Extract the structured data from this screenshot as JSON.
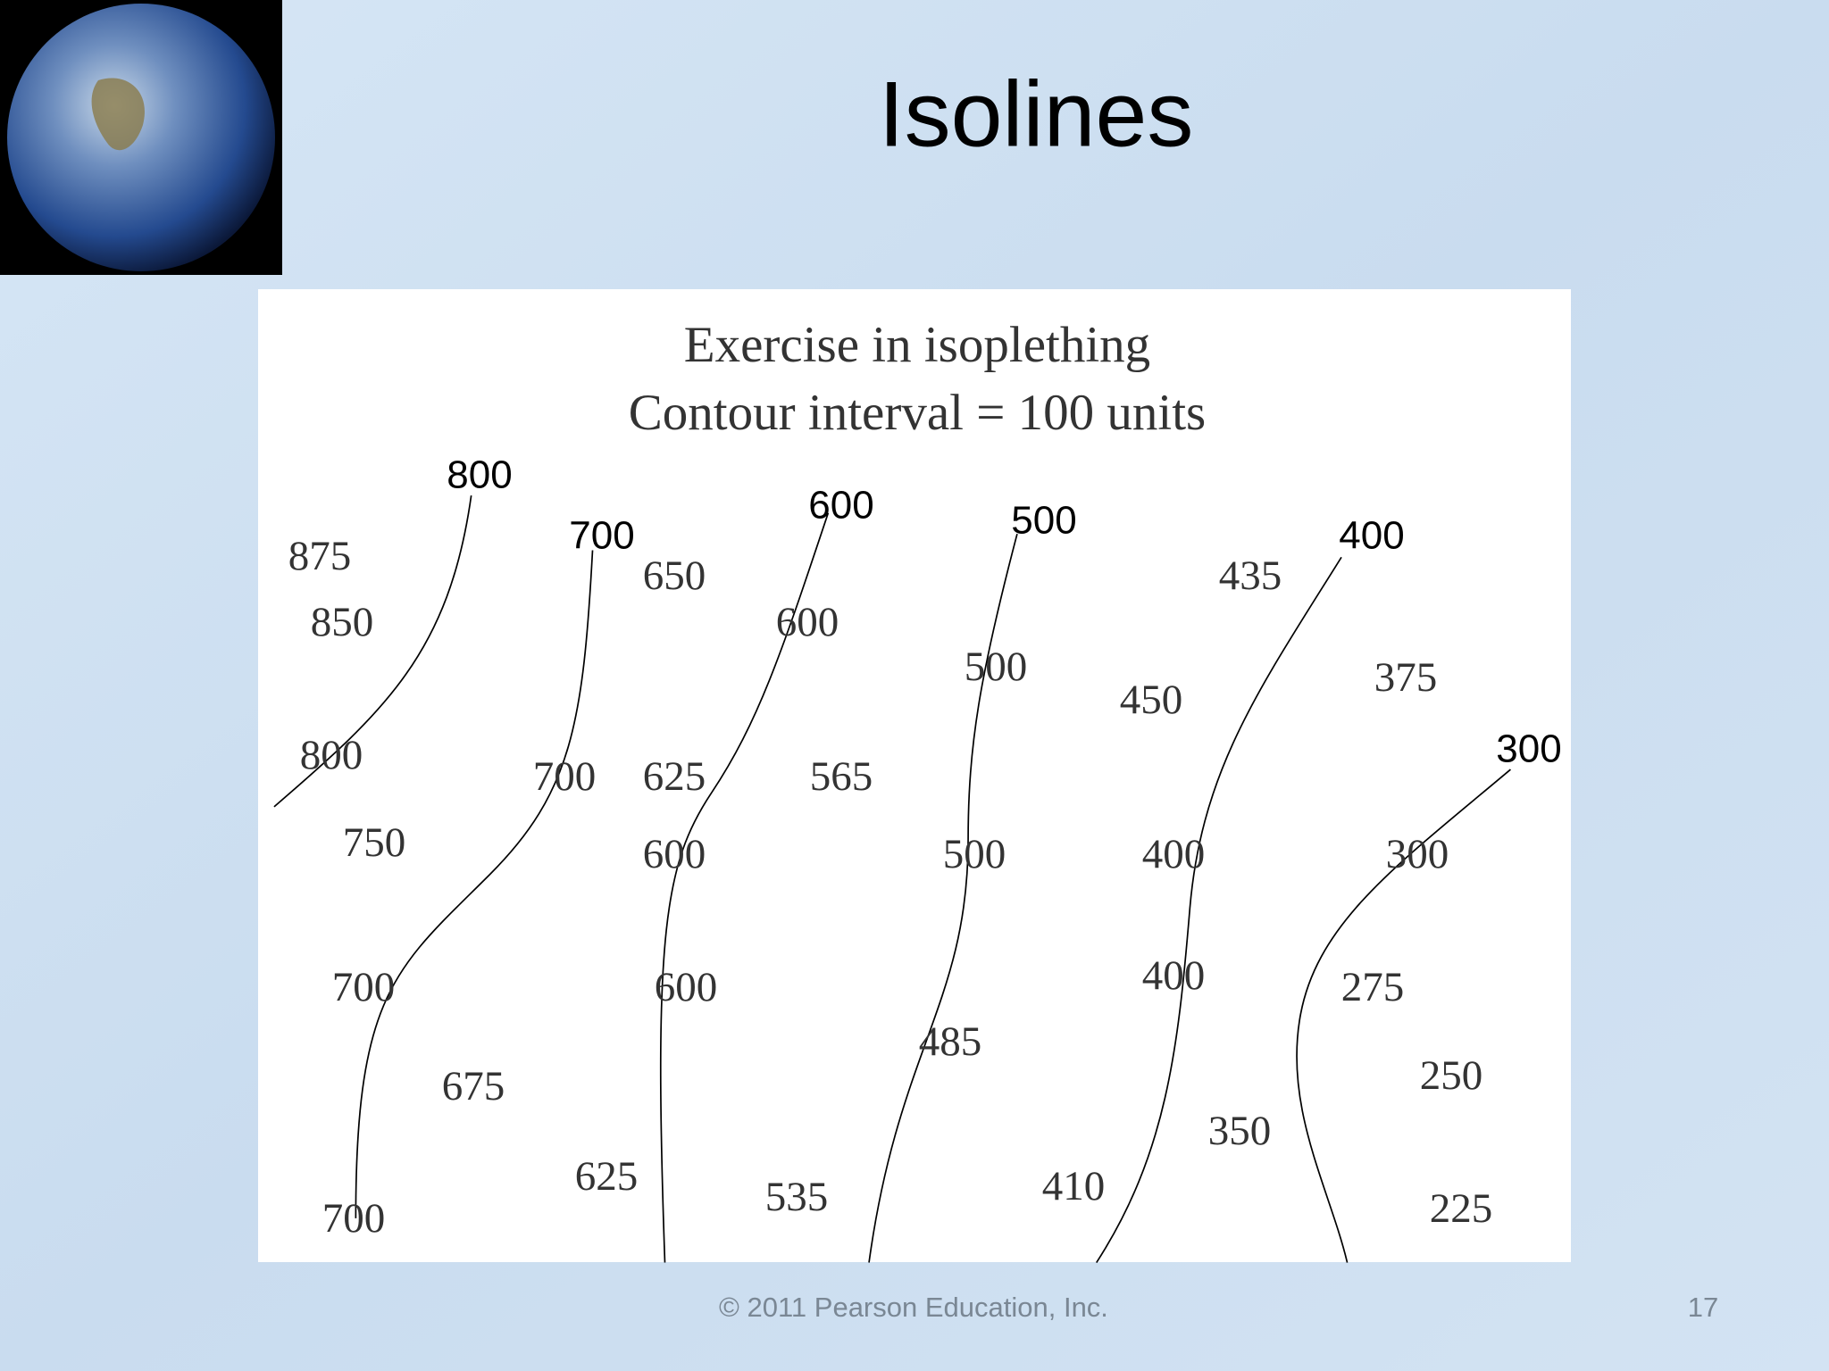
{
  "slide": {
    "title": "Isolines",
    "figure": {
      "title_lines": [
        "Exercise in isoplething",
        "Contour interval = 100 units"
      ],
      "isoline_labels": [
        "800",
        "700",
        "600",
        "500",
        "400",
        "300"
      ],
      "point_values": [
        "875",
        "850",
        "800",
        "750",
        "700",
        "675",
        "700",
        "700",
        "650",
        "625",
        "600",
        "600",
        "625",
        "600",
        "565",
        "535",
        "500",
        "500",
        "485",
        "410",
        "450",
        "435",
        "400",
        "400",
        "350",
        "375",
        "300",
        "275",
        "250",
        "225"
      ]
    },
    "footer": {
      "copyright": "© 2011 Pearson Education, Inc.",
      "page_number": "17"
    }
  }
}
